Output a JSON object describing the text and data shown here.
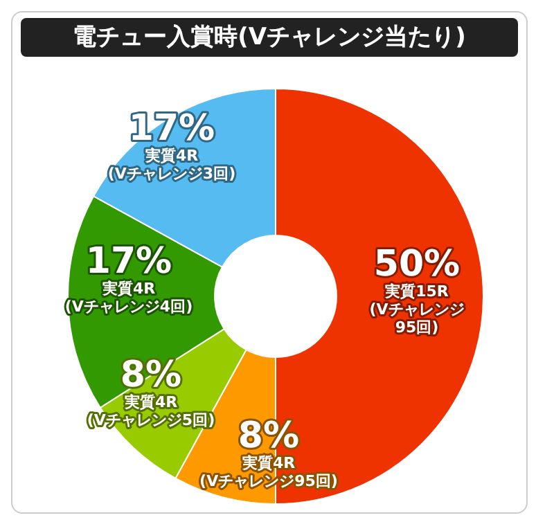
{
  "chart_data": {
    "type": "donut",
    "title": "電チュー入賞時(Vチャレンジ当たり)",
    "categories": [
      "実質15R\n(Vチャレンジ\n95回)",
      "実質4R\n(Vチャレンジ95回)",
      "実質4R\n(Vチャレンジ5回)",
      "実質4R\n(Vチャレンジ4回)",
      "実質4R\n(Vチャレンジ3回)"
    ],
    "values": [
      50,
      8,
      8,
      17,
      17
    ],
    "value_labels": [
      "50%",
      "8%",
      "8%",
      "17%",
      "17%"
    ],
    "colors": [
      "#ee3300",
      "#ff9900",
      "#99cc00",
      "#339900",
      "#55bbf0"
    ],
    "legend": false
  }
}
